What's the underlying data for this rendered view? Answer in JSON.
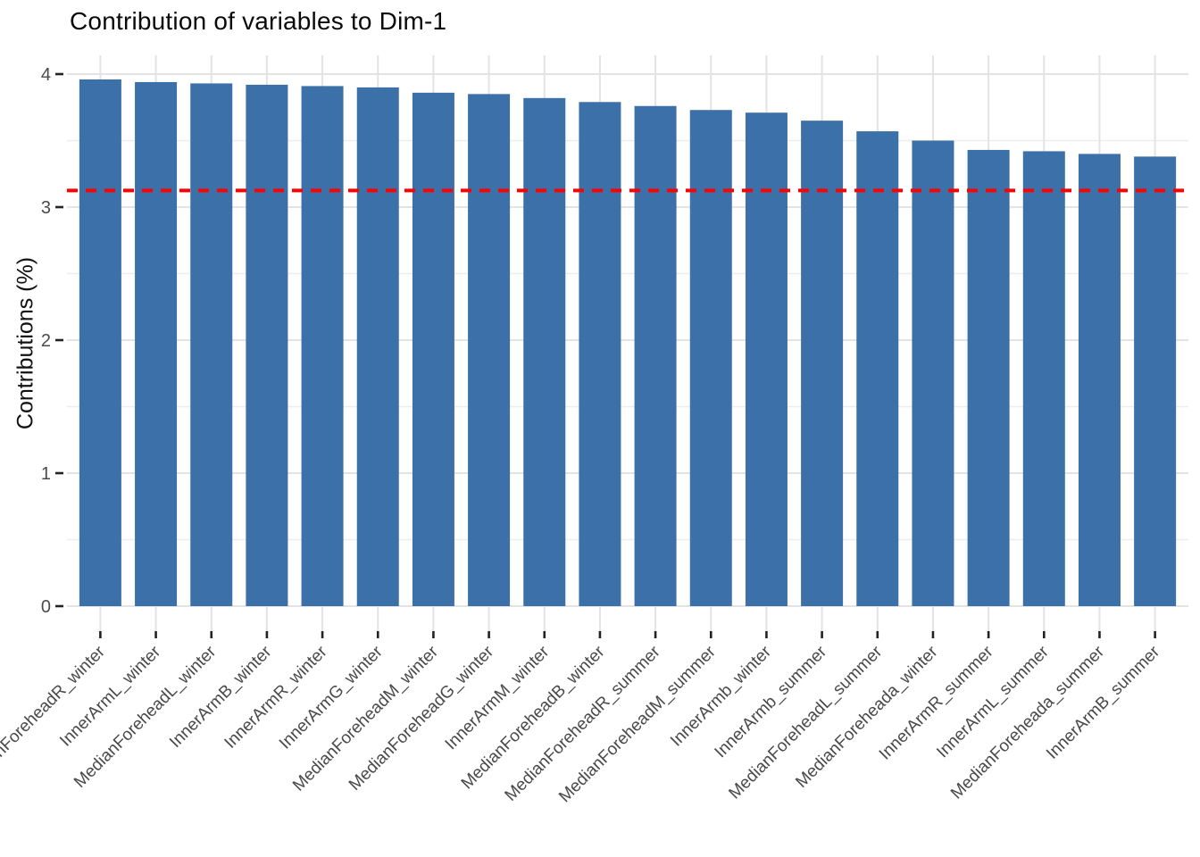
{
  "chart_data": {
    "type": "bar",
    "title": "Contribution of variables to Dim-1",
    "ylabel": "Contributions (%)",
    "xlabel": "",
    "categories": [
      "MedianForeheadR_winter",
      "InnerArmL_winter",
      "MedianForeheadL_winter",
      "InnerArmB_winter",
      "InnerArmR_winter",
      "InnerArmG_winter",
      "MedianForeheadM_winter",
      "MedianForeheadG_winter",
      "InnerArmM_winter",
      "MedianForeheadB_winter",
      "MedianForeheadR_summer",
      "MedianForeheadM_summer",
      "InnerArmb_winter",
      "InnerArmb_summer",
      "MedianForeheadL_summer",
      "MedianForeheada_winter",
      "InnerArmR_summer",
      "InnerArmL_summer",
      "MedianForeheada_summer",
      "InnerArmB_summer"
    ],
    "values": [
      3.96,
      3.94,
      3.93,
      3.92,
      3.91,
      3.9,
      3.86,
      3.85,
      3.82,
      3.79,
      3.76,
      3.73,
      3.71,
      3.65,
      3.57,
      3.5,
      3.43,
      3.42,
      3.4,
      3.38
    ],
    "yticks": [
      0,
      1,
      2,
      3,
      4
    ],
    "ylim": [
      0,
      4.15
    ],
    "x_label_angle": 45,
    "grid": true,
    "legend": "none",
    "bar_color": "#3c70a8",
    "grid_major_color": "#e3e3e3",
    "grid_minor_color": "#ededed",
    "tick_color": "#222222",
    "tick_label_color": "#4a4a4a",
    "reference_line": {
      "value": 3.125,
      "color": "#ff0000",
      "style": "dashed"
    }
  }
}
